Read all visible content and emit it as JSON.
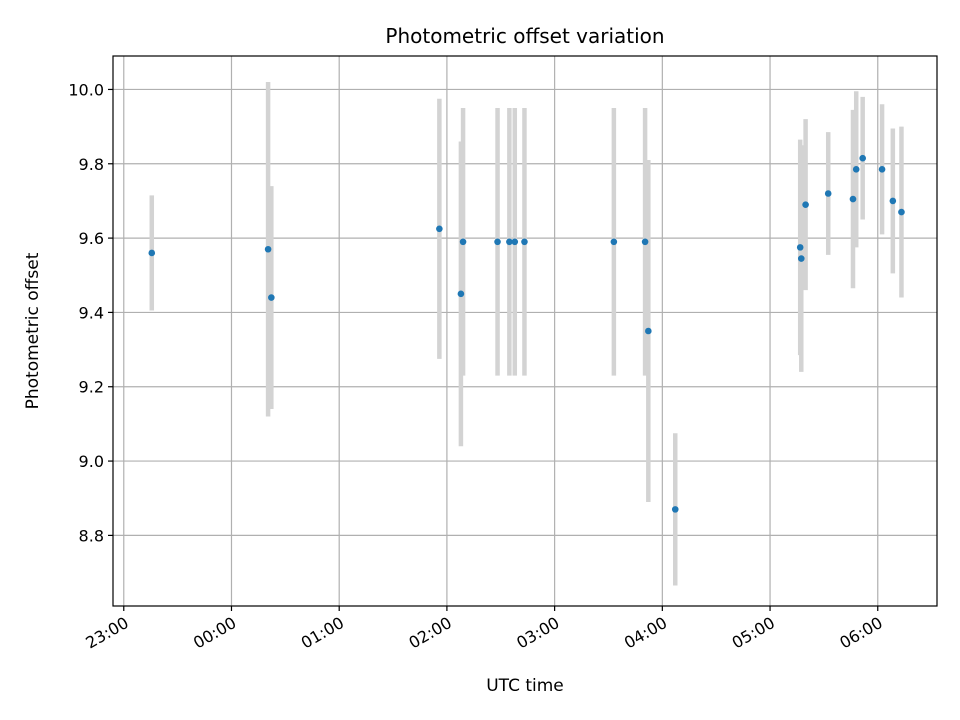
{
  "chart_data": {
    "type": "scatter",
    "title": "Photometric offset variation",
    "xlabel": "UTC time",
    "ylabel": "Photometric offset",
    "x_unit": "hours (UTC, continuing past midnight)",
    "xlim": [
      22.9,
      30.55
    ],
    "ylim": [
      8.61,
      10.09
    ],
    "grid": true,
    "x_ticks": [
      {
        "value": 23,
        "label": "23:00"
      },
      {
        "value": 24,
        "label": "00:00"
      },
      {
        "value": 25,
        "label": "01:00"
      },
      {
        "value": 26,
        "label": "02:00"
      },
      {
        "value": 27,
        "label": "03:00"
      },
      {
        "value": 28,
        "label": "04:00"
      },
      {
        "value": 29,
        "label": "05:00"
      },
      {
        "value": 30,
        "label": "06:00"
      }
    ],
    "y_ticks": [
      {
        "value": 8.8,
        "label": "8.8"
      },
      {
        "value": 9.0,
        "label": "9.0"
      },
      {
        "value": 9.2,
        "label": "9.2"
      },
      {
        "value": 9.4,
        "label": "9.4"
      },
      {
        "value": 9.6,
        "label": "9.6"
      },
      {
        "value": 9.8,
        "label": "9.8"
      },
      {
        "value": 10.0,
        "label": "10.0"
      }
    ],
    "point_color": "#1f77b4",
    "errorbar_color": "#d3d3d3",
    "points": [
      {
        "x": 23.26,
        "y": 9.56,
        "err": 0.155
      },
      {
        "x": 24.34,
        "y": 9.57,
        "err": 0.45
      },
      {
        "x": 24.37,
        "y": 9.44,
        "err": 0.3
      },
      {
        "x": 25.93,
        "y": 9.625,
        "err": 0.35
      },
      {
        "x": 26.13,
        "y": 9.45,
        "err": 0.41
      },
      {
        "x": 26.15,
        "y": 9.59,
        "err": 0.36
      },
      {
        "x": 26.47,
        "y": 9.59,
        "err": 0.36
      },
      {
        "x": 26.58,
        "y": 9.59,
        "err": 0.36
      },
      {
        "x": 26.63,
        "y": 9.59,
        "err": 0.36
      },
      {
        "x": 26.72,
        "y": 9.59,
        "err": 0.36
      },
      {
        "x": 27.55,
        "y": 9.59,
        "err": 0.36
      },
      {
        "x": 27.84,
        "y": 9.59,
        "err": 0.36
      },
      {
        "x": 27.87,
        "y": 9.35,
        "err": 0.46
      },
      {
        "x": 28.12,
        "y": 8.87,
        "err": 0.205
      },
      {
        "x": 29.28,
        "y": 9.575,
        "err": 0.29
      },
      {
        "x": 29.29,
        "y": 9.545,
        "err": 0.305
      },
      {
        "x": 29.33,
        "y": 9.69,
        "err": 0.23
      },
      {
        "x": 29.54,
        "y": 9.72,
        "err": 0.165
      },
      {
        "x": 29.77,
        "y": 9.705,
        "err": 0.24
      },
      {
        "x": 29.8,
        "y": 9.785,
        "err": 0.21
      },
      {
        "x": 29.86,
        "y": 9.815,
        "err": 0.165
      },
      {
        "x": 30.04,
        "y": 9.785,
        "err": 0.175
      },
      {
        "x": 30.14,
        "y": 9.7,
        "err": 0.195
      },
      {
        "x": 30.22,
        "y": 9.67,
        "err": 0.23
      }
    ]
  }
}
